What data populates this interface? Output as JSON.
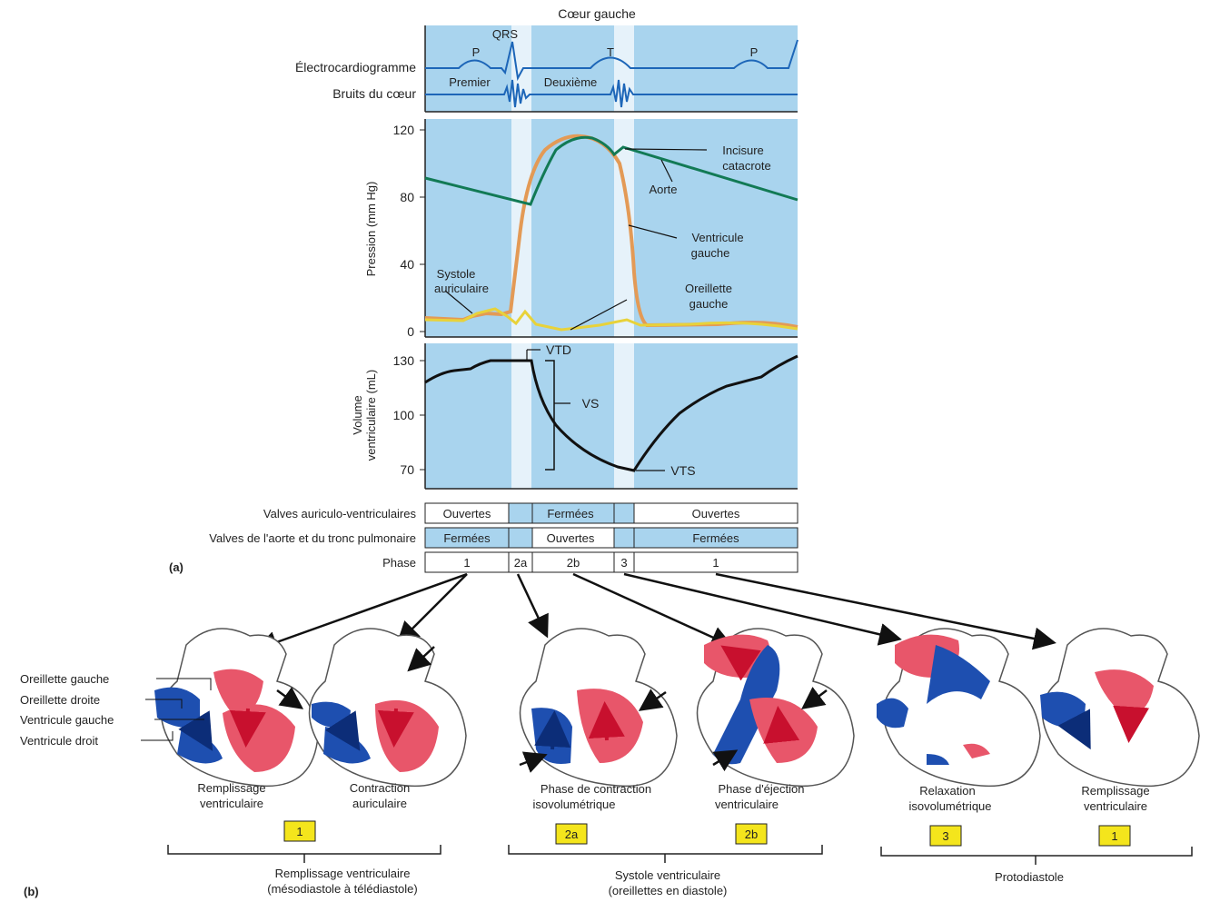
{
  "panel_a": {
    "top_title": "Cœur gauche",
    "ecg_label": "Électrocardiogramme",
    "sounds_label": "Bruits du cœur",
    "ecg_waves": {
      "p1": "P",
      "qrs": "QRS",
      "t": "T",
      "p2": "P"
    },
    "heart_sounds": {
      "first": "Premier",
      "second": "Deuxième"
    },
    "pressure": {
      "ylabel": "Pression (mm Hg)",
      "ticks": [
        "120",
        "80",
        "40",
        "0"
      ],
      "annotations": {
        "notch": "Incisure catacrote",
        "aorta": "Aorte",
        "ventricle": "Ventricule gauche",
        "systole": "Systole auriculaire",
        "atrium": "Oreillette gauche"
      }
    },
    "volume": {
      "ylabel": "Volume ventriculaire (mL)",
      "ticks": [
        "130",
        "100",
        "70"
      ],
      "annotations": {
        "edv": "VTD",
        "sv": "VS",
        "esv": "VTS"
      }
    },
    "table": {
      "row_av_label": "Valves auriculo-ventriculaires",
      "row_av_cells": [
        "Ouvertes",
        "",
        "Fermées",
        "",
        "Ouvertes"
      ],
      "row_sl_label": "Valves de l'aorte et du tronc pulmonaire",
      "row_sl_cells": [
        "Fermées",
        "",
        "Ouvertes",
        "",
        "Fermées"
      ],
      "row_phase_label": "Phase",
      "row_phase_cells": [
        "1",
        "2a",
        "2b",
        "3",
        "1"
      ]
    },
    "panel_label": "(a)"
  },
  "panel_b": {
    "panel_label": "(b)",
    "heart_labels": [
      "Oreillette gauche",
      "Oreillette droite",
      "Ventricule gauche",
      "Ventricule droit"
    ],
    "captions": [
      "Remplissage ventriculaire",
      "Contraction auriculaire",
      "Phase de contraction isovolumétrique",
      "Phase d'éjection ventriculaire",
      "Relaxation isovolumétrique",
      "Remplissage ventriculaire"
    ],
    "phase_boxes": [
      "1",
      "2a",
      "2b",
      "3",
      "1"
    ],
    "groups": [
      "Remplissage ventriculaire (mésodiastole à télédiastole)",
      "Systole ventriculaire (oreillettes en diastole)",
      "Protodiastole"
    ]
  },
  "colors": {
    "panel_blue": "#a9d4ee",
    "band_white": "#e6f2fa",
    "ecg_blue": "#1d66b8",
    "aorta_green": "#127a55",
    "ventricle_orange": "#e39a56",
    "atrium_yellow": "#e8d23a",
    "phase_yellow": "#f4e51c",
    "heart_red": "#e8566a",
    "heart_blue": "#1e4fb0"
  }
}
